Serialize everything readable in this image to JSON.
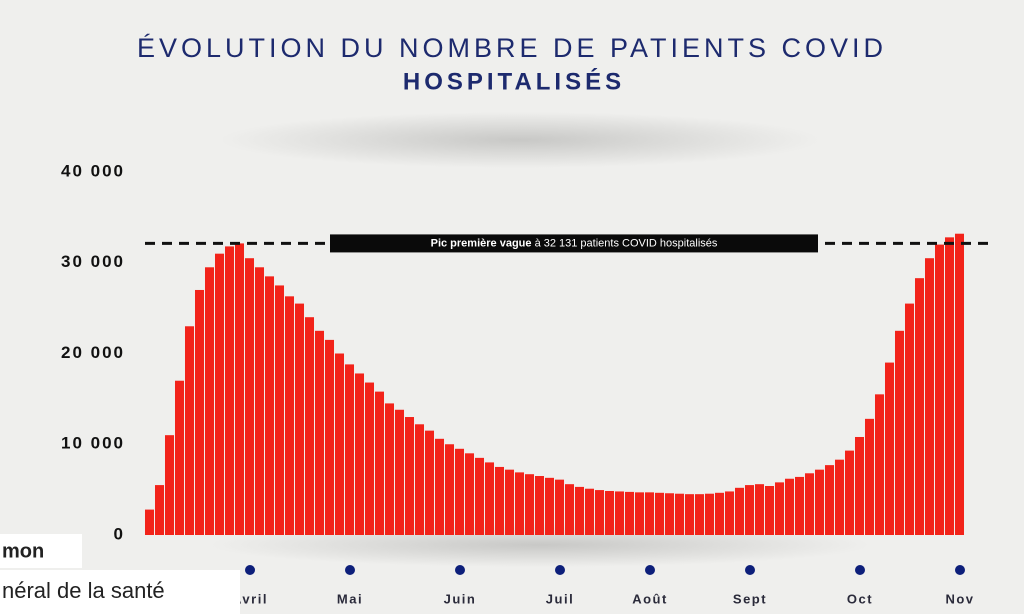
{
  "chart_data": {
    "type": "bar",
    "title": "ÉVOLUTION DU NOMBRE DE PATIENTS COVID",
    "subtitle": "HOSPITALISÉS",
    "categories": [
      null,
      null,
      null,
      null,
      null,
      null,
      null,
      null,
      null,
      null,
      "Avril",
      null,
      null,
      null,
      null,
      null,
      null,
      null,
      null,
      null,
      "Mai",
      null,
      null,
      null,
      null,
      null,
      null,
      null,
      null,
      null,
      null,
      "Juin",
      null,
      null,
      null,
      null,
      null,
      null,
      null,
      null,
      null,
      "Juil",
      null,
      null,
      null,
      null,
      null,
      null,
      null,
      null,
      "Août",
      null,
      null,
      null,
      null,
      null,
      null,
      null,
      null,
      null,
      "Sept",
      null,
      null,
      null,
      null,
      null,
      null,
      null,
      null,
      null,
      null,
      "Oct",
      null,
      null,
      null,
      null,
      null,
      null,
      null,
      null,
      null,
      "Nov"
    ],
    "values": [
      2800,
      5500,
      11000,
      17000,
      23000,
      27000,
      29500,
      31000,
      31800,
      32131,
      30500,
      29500,
      28500,
      27500,
      26300,
      25500,
      24000,
      22500,
      21500,
      20000,
      18800,
      17800,
      16800,
      15800,
      14500,
      13800,
      13000,
      12200,
      11500,
      10600,
      10000,
      9500,
      9000,
      8500,
      8000,
      7500,
      7200,
      6900,
      6700,
      6500,
      6300,
      6100,
      5600,
      5300,
      5100,
      4950,
      4850,
      4800,
      4750,
      4700,
      4700,
      4650,
      4600,
      4550,
      4500,
      4500,
      4550,
      4650,
      4800,
      5200,
      5500,
      5600,
      5400,
      5800,
      6200,
      6400,
      6800,
      7200,
      7700,
      8300,
      9300,
      10800,
      12800,
      15500,
      19000,
      22500,
      25500,
      28300,
      30500,
      32000,
      32800,
      33200
    ],
    "color": "#f2231a",
    "ylim": [
      0,
      40000
    ],
    "yticks": [
      0,
      {
        "value": 10000,
        "label": "10 000"
      },
      {
        "value": 20000,
        "label": "20 000"
      },
      {
        "value": 30000,
        "label": "30 000"
      },
      {
        "value": 40000,
        "label": "40 000"
      }
    ],
    "grid": false,
    "annotation": {
      "value": 32131,
      "bold": "Pic première vague",
      "text": "à 32 131 patients COVID hospitalisés"
    }
  },
  "overlay": {
    "name": "mon",
    "role": "néral de la santé"
  }
}
